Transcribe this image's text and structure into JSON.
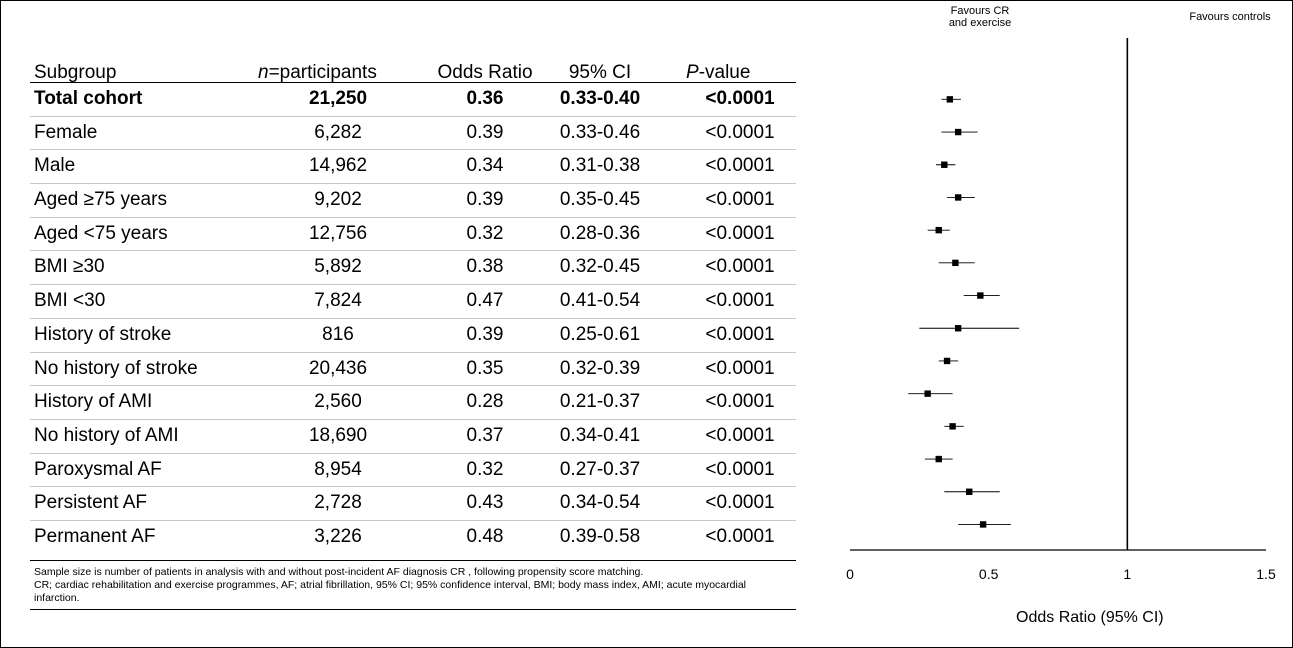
{
  "table": {
    "headers": {
      "subgroup": "Subgroup",
      "n_italic": "n",
      "n_rest": "=participants",
      "or": "Odds Ratio",
      "ci": "95% CI",
      "p_italic": "P",
      "p_rest": "-value"
    },
    "rows": [
      {
        "subgroup": "Total cohort",
        "n": "21,250",
        "or": "0.36",
        "ci": "0.33-0.40",
        "p": "<0.0001",
        "bold": true
      },
      {
        "subgroup": "Female",
        "n": "6,282",
        "or": "0.39",
        "ci": "0.33-0.46",
        "p": "<0.0001"
      },
      {
        "subgroup": "Male",
        "n": "14,962",
        "or": "0.34",
        "ci": "0.31-0.38",
        "p": "<0.0001"
      },
      {
        "subgroup": "Aged ≥75 years",
        "n": "9,202",
        "or": "0.39",
        "ci": "0.35-0.45",
        "p": "<0.0001"
      },
      {
        "subgroup": "Aged <75 years",
        "n": "12,756",
        "or": "0.32",
        "ci": "0.28-0.36",
        "p": "<0.0001"
      },
      {
        "subgroup": "BMI ≥30",
        "n": "5,892",
        "or": "0.38",
        "ci": "0.32-0.45",
        "p": "<0.0001"
      },
      {
        "subgroup": "BMI <30",
        "n": "7,824",
        "or": "0.47",
        "ci": "0.41-0.54",
        "p": "<0.0001"
      },
      {
        "subgroup": "History of stroke",
        "n": "816",
        "or": "0.39",
        "ci": "0.25-0.61",
        "p": "<0.0001"
      },
      {
        "subgroup": "No history of stroke",
        "n": "20,436",
        "or": "0.35",
        "ci": "0.32-0.39",
        "p": "<0.0001"
      },
      {
        "subgroup": "History of AMI",
        "n": "2,560",
        "or": "0.28",
        "ci": "0.21-0.37",
        "p": "<0.0001"
      },
      {
        "subgroup": "No history of AMI",
        "n": "18,690",
        "or": "0.37",
        "ci": "0.34-0.41",
        "p": "<0.0001"
      },
      {
        "subgroup": "Paroxysmal AF",
        "n": "8,954",
        "or": "0.32",
        "ci": "0.27-0.37",
        "p": "<0.0001"
      },
      {
        "subgroup": "Persistent AF",
        "n": "2,728",
        "or": "0.43",
        "ci": "0.34-0.54",
        "p": "<0.0001"
      },
      {
        "subgroup": "Permanent AF",
        "n": "3,226",
        "or": "0.48",
        "ci": "0.39-0.58",
        "p": "<0.0001"
      }
    ]
  },
  "notes": {
    "line1": "Sample size is number of patients in analysis with and without post-incident AF diagnosis CR , following propensity score matching.",
    "line2": "CR; cardiac rehabilitation and exercise programmes, AF; atrial fibrillation, 95% CI; 95% confidence interval, BMI; body mass index, AMI; acute myocardial infarction."
  },
  "chart_data": {
    "type": "forest",
    "xlabel": "Odds Ratio (95% CI)",
    "xlim": [
      0,
      1.5
    ],
    "xticks": [
      0,
      0.5,
      1,
      1.5
    ],
    "xtick_labels": [
      "0",
      "0.5",
      "1",
      "1.5"
    ],
    "reference_line": 1,
    "left_label": "Favours CR\nand exercise",
    "right_label": "Favours controls",
    "points": [
      {
        "or": 0.36,
        "lo": 0.33,
        "hi": 0.4
      },
      {
        "or": 0.39,
        "lo": 0.33,
        "hi": 0.46
      },
      {
        "or": 0.34,
        "lo": 0.31,
        "hi": 0.38
      },
      {
        "or": 0.39,
        "lo": 0.35,
        "hi": 0.45
      },
      {
        "or": 0.32,
        "lo": 0.28,
        "hi": 0.36
      },
      {
        "or": 0.38,
        "lo": 0.32,
        "hi": 0.45
      },
      {
        "or": 0.47,
        "lo": 0.41,
        "hi": 0.54
      },
      {
        "or": 0.39,
        "lo": 0.25,
        "hi": 0.61
      },
      {
        "or": 0.35,
        "lo": 0.32,
        "hi": 0.39
      },
      {
        "or": 0.28,
        "lo": 0.21,
        "hi": 0.37
      },
      {
        "or": 0.37,
        "lo": 0.34,
        "hi": 0.41
      },
      {
        "or": 0.32,
        "lo": 0.27,
        "hi": 0.37
      },
      {
        "or": 0.43,
        "lo": 0.34,
        "hi": 0.54
      },
      {
        "or": 0.48,
        "lo": 0.39,
        "hi": 0.58
      }
    ],
    "colors": {
      "marker": "#000000",
      "line": "#000000"
    }
  }
}
